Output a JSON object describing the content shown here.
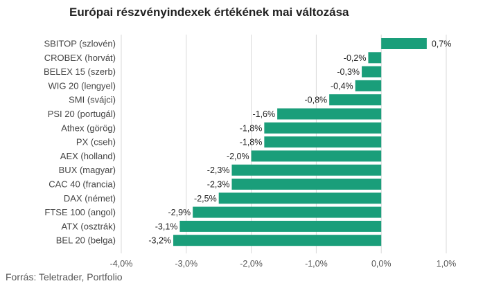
{
  "title": "Európai részvényindexek értékének mai változása",
  "source": "Forrás: Teletrader, Portfolio",
  "colors": {
    "bar": "#1a9e7a",
    "grid": "#d9d9d9",
    "text": "#444444"
  },
  "chart_data": {
    "type": "bar",
    "orientation": "horizontal",
    "title": "Európai részvényindexek értékének mai változása",
    "xlabel": "",
    "ylabel": "",
    "xlim": [
      -4.0,
      1.0
    ],
    "x_ticks": [
      -4.0,
      -3.0,
      -2.0,
      -1.0,
      0.0,
      1.0
    ],
    "x_tick_labels": [
      "-4,0%",
      "-3,0%",
      "-2,0%",
      "-1,0%",
      "0,0%",
      "1,0%"
    ],
    "grid": "vertical",
    "categories": [
      "SBITOP (szlovén)",
      "CROBEX (horvát)",
      "BELEX 15 (szerb)",
      "WIG 20 (lengyel)",
      "SMI (svájci)",
      "PSI 20 (portugál)",
      "Athex (görög)",
      "PX (cseh)",
      "AEX (holland)",
      "BUX (magyar)",
      "CAC 40 (francia)",
      "DAX (német)",
      "FTSE 100 (angol)",
      "ATX (osztrák)",
      "BEL 20 (belga)"
    ],
    "values": [
      0.7,
      -0.2,
      -0.3,
      -0.4,
      -0.8,
      -1.6,
      -1.8,
      -1.8,
      -2.0,
      -2.3,
      -2.3,
      -2.5,
      -2.9,
      -3.1,
      -3.2
    ],
    "value_labels": [
      "0,7%",
      "-0,2%",
      "-0,3%",
      "-0,4%",
      "-0,8%",
      "-1,6%",
      "-1,8%",
      "-1,8%",
      "-2,0%",
      "-2,3%",
      "-2,3%",
      "-2,5%",
      "-2,9%",
      "-3,1%",
      "-3,2%"
    ]
  }
}
